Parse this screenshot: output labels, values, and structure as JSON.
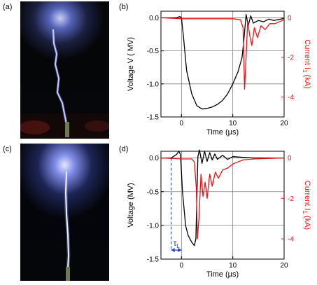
{
  "panels": {
    "a": {
      "label": "(a)"
    },
    "b": {
      "label": "(b)"
    },
    "c": {
      "label": "(c)"
    },
    "d": {
      "label": "(d)"
    }
  },
  "colors": {
    "voltage": "#000000",
    "current": "#e8141a",
    "annotation": "#1a3de0",
    "grid": "#808080"
  },
  "chart_data": [
    {
      "type": "line",
      "panel": "b",
      "xlabel": "Time (µs)",
      "ylabel": "Voltage V ( MV)",
      "y2label": "Current I",
      "y2label_sub": "1",
      "y2label_unit": "(kA)",
      "xlim": [
        -4,
        20
      ],
      "ylim": [
        -1.5,
        0.1
      ],
      "y2lim": [
        -5,
        0.33
      ],
      "xticks": [
        0,
        10,
        20
      ],
      "xtick_labels": [
        "0",
        "10",
        "20"
      ],
      "yticks": [
        0.0,
        -0.5,
        -1.0,
        -1.5
      ],
      "ytick_labels": [
        "0.0",
        "-0.5",
        "-1.0",
        "-1.5"
      ],
      "y2ticks": [
        0,
        -2,
        -4
      ],
      "y2tick_labels": [
        "0",
        "-2",
        "-4"
      ],
      "grid": true,
      "series": [
        {
          "axis": "left",
          "color": "#000000",
          "x": [
            -4,
            -2,
            -1,
            -0.3,
            0,
            0.4,
            1,
            2,
            3,
            4,
            5,
            6,
            7,
            8,
            9,
            10,
            11,
            11.8,
            12.2,
            12.6,
            13,
            13.5,
            14,
            15,
            16,
            17,
            18,
            20
          ],
          "y": [
            0.0,
            0.0,
            0.0,
            0.02,
            0.0,
            -0.3,
            -0.8,
            -1.15,
            -1.33,
            -1.38,
            -1.37,
            -1.35,
            -1.31,
            -1.25,
            -1.15,
            -1.0,
            -0.82,
            -0.6,
            -0.3,
            0.05,
            -0.12,
            0.03,
            -0.08,
            -0.04,
            -0.06,
            -0.02,
            -0.04,
            -0.01
          ]
        },
        {
          "axis": "right",
          "color": "#e8141a",
          "x": [
            -4,
            0,
            5,
            10,
            11.5,
            12.0,
            12.3,
            12.6,
            12.9,
            13.3,
            13.7,
            14.2,
            14.8,
            15.5,
            16.3,
            17.2,
            18.2,
            20
          ],
          "y": [
            0.0,
            -0.05,
            -0.05,
            -0.05,
            -0.1,
            -0.5,
            -3.6,
            -2.0,
            -0.2,
            -0.9,
            -1.4,
            -0.5,
            -1.0,
            -0.4,
            -0.6,
            -0.3,
            -0.3,
            -0.1
          ]
        }
      ]
    },
    {
      "type": "line",
      "panel": "d",
      "xlabel": "Time (µs)",
      "ylabel": "Voltage (MV)",
      "y2label": "Current I",
      "y2label_sub": "1",
      "y2label_unit": "(kA)",
      "xlim": [
        -4,
        20
      ],
      "ylim": [
        -1.5,
        0.1
      ],
      "y2lim": [
        -5,
        0.33
      ],
      "xticks": [
        0,
        10,
        20
      ],
      "xtick_labels": [
        "0",
        "10",
        "20"
      ],
      "yticks": [
        0.0,
        -0.5,
        -1.0,
        -1.5
      ],
      "ytick_labels": [
        "0.0",
        "-0.5",
        "-1.0",
        "-1.5"
      ],
      "y2ticks": [
        0,
        -2,
        -4
      ],
      "y2tick_labels": [
        "0",
        "-2",
        "-4"
      ],
      "grid": true,
      "annotation": {
        "label": "τ",
        "sub": "L",
        "x_start": -2.0,
        "x_end": 0.0,
        "y": -1.2
      },
      "series": [
        {
          "axis": "left",
          "color": "#000000",
          "x": [
            -4,
            -2,
            -1,
            -0.5,
            -0.2,
            0.2,
            0.8,
            1.3,
            2.0,
            2.5,
            2.8,
            3.0,
            3.2,
            3.5,
            4,
            4.5,
            5,
            5.5,
            6,
            6.5,
            7,
            8,
            9,
            10,
            12,
            14,
            16,
            20
          ],
          "y": [
            0.0,
            0.0,
            0.05,
            0.1,
            0.05,
            -0.5,
            -1.0,
            -1.15,
            -1.25,
            -1.3,
            -1.2,
            -0.6,
            0.02,
            0.12,
            -0.08,
            0.1,
            -0.05,
            0.08,
            -0.03,
            0.06,
            -0.02,
            0.04,
            -0.02,
            0.02,
            0.01,
            0.0,
            0.0,
            0.0
          ]
        },
        {
          "axis": "right",
          "color": "#e8141a",
          "x": [
            -4,
            0,
            2,
            2.5,
            2.9,
            3.1,
            3.4,
            3.8,
            4.2,
            4.6,
            5.0,
            5.5,
            6.0,
            6.6,
            7.2,
            8,
            9,
            10,
            12,
            14,
            20
          ],
          "y": [
            0.0,
            -0.05,
            -0.05,
            -0.2,
            -1.5,
            -4.0,
            -3.0,
            -0.8,
            -1.9,
            -1.2,
            -2.0,
            -0.8,
            -1.4,
            -0.7,
            -1.0,
            -0.6,
            -0.5,
            -0.3,
            -0.1,
            -0.05,
            0.0
          ]
        }
      ]
    }
  ]
}
